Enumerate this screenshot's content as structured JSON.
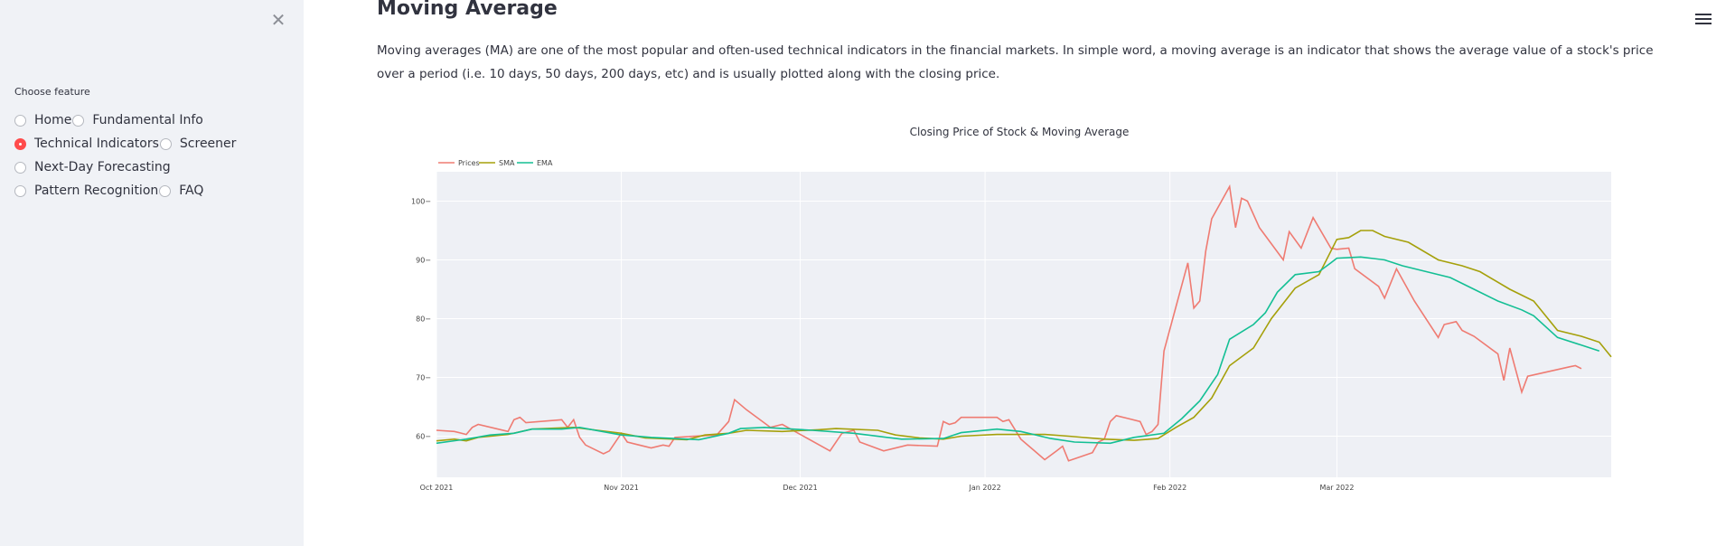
{
  "sidebar": {
    "close_icon": "close-icon",
    "label": "Choose feature",
    "options": [
      {
        "label": "Home",
        "selected": false
      },
      {
        "label": "Fundamental Info",
        "selected": false
      },
      {
        "label": "Technical Indicators",
        "selected": true
      },
      {
        "label": "Screener",
        "selected": false
      },
      {
        "label": "Next-Day Forecasting",
        "selected": false
      },
      {
        "label": "Pattern Recognition",
        "selected": false
      },
      {
        "label": "FAQ",
        "selected": false
      }
    ]
  },
  "main": {
    "title": "Moving Average",
    "description": "Moving averages (MA) are one of the most popular and often-used technical indicators in the financial markets. In simple word, a moving average is an indicator that shows the average value of a stock's price over a period (i.e. 10 days, 50 days, 200 days, etc) and is usually plotted along with the closing price.",
    "menu_icon": "hamburger-menu-icon"
  },
  "colors": {
    "accent": "#ff4b4b",
    "sidebar_bg": "#f0f2f6",
    "plot_bg": "#e5ecf6"
  },
  "chart_data": {
    "type": "line",
    "title": "Closing Price of Stock & Moving Average",
    "xlabel": "",
    "ylabel": "",
    "x_ticks": [
      "Oct 2021",
      "Nov 2021",
      "Dec 2021",
      "Jan 2022",
      "Feb 2022",
      "Mar 2022"
    ],
    "y_ticks": [
      60,
      70,
      80,
      90,
      100
    ],
    "ylim": [
      53,
      105
    ],
    "grid": true,
    "legend": "top-left",
    "series": [
      {
        "name": "Prices",
        "color": "#ef7b72",
        "points": [
          [
            "2021-10-01",
            61
          ],
          [
            "2021-10-04",
            60.8
          ],
          [
            "2021-10-06",
            60.3
          ],
          [
            "2021-10-07",
            61.5
          ],
          [
            "2021-10-08",
            62
          ],
          [
            "2021-10-13",
            60.8
          ],
          [
            "2021-10-14",
            62.8
          ],
          [
            "2021-10-15",
            63.2
          ],
          [
            "2021-10-16",
            62.3
          ],
          [
            "2021-10-22",
            62.8
          ],
          [
            "2021-10-23",
            61.5
          ],
          [
            "2021-10-24",
            62.8
          ],
          [
            "2021-10-25",
            59.8
          ],
          [
            "2021-10-26",
            58.5
          ],
          [
            "2021-10-29",
            57
          ],
          [
            "2021-10-30",
            57.5
          ],
          [
            "2021-11-01",
            60.5
          ],
          [
            "2021-11-02",
            59
          ],
          [
            "2021-11-04",
            58.5
          ],
          [
            "2021-11-06",
            58
          ],
          [
            "2021-11-08",
            58.5
          ],
          [
            "2021-11-09",
            58.3
          ],
          [
            "2021-11-10",
            59.8
          ],
          [
            "2021-11-17",
            60.2
          ],
          [
            "2021-11-19",
            62.5
          ],
          [
            "2021-11-20",
            66.2
          ],
          [
            "2021-11-22",
            64.5
          ],
          [
            "2021-11-24",
            63
          ],
          [
            "2021-11-26",
            61.5
          ],
          [
            "2021-11-28",
            62
          ],
          [
            "2021-12-06",
            57.5
          ],
          [
            "2021-12-08",
            60.5
          ],
          [
            "2021-12-10",
            61
          ],
          [
            "2021-12-11",
            59
          ],
          [
            "2021-12-15",
            57.5
          ],
          [
            "2021-12-19",
            58.5
          ],
          [
            "2021-12-24",
            58.3
          ],
          [
            "2021-12-25",
            62.5
          ],
          [
            "2021-12-26",
            62
          ],
          [
            "2021-12-27",
            62.3
          ],
          [
            "2021-12-28",
            63.2
          ],
          [
            "2022-01-03",
            63.2
          ],
          [
            "2022-01-04",
            62.5
          ],
          [
            "2022-01-05",
            62.8
          ],
          [
            "2022-01-07",
            59.5
          ],
          [
            "2022-01-11",
            56
          ],
          [
            "2022-01-13",
            57.5
          ],
          [
            "2022-01-14",
            58.3
          ],
          [
            "2022-01-15",
            55.8
          ],
          [
            "2022-01-19",
            57.2
          ],
          [
            "2022-01-20",
            59
          ],
          [
            "2022-01-21",
            59.5
          ],
          [
            "2022-01-22",
            62.5
          ],
          [
            "2022-01-23",
            63.5
          ],
          [
            "2022-01-25",
            63
          ],
          [
            "2022-01-27",
            62.5
          ],
          [
            "2022-01-28",
            60.3
          ],
          [
            "2022-01-29",
            60.8
          ],
          [
            "2022-01-30",
            62
          ],
          [
            "2022-01-31",
            74.5
          ],
          [
            "2022-02-02",
            82
          ],
          [
            "2022-02-04",
            89.5
          ],
          [
            "2022-02-05",
            81.8
          ],
          [
            "2022-02-06",
            83
          ],
          [
            "2022-02-07",
            91.5
          ],
          [
            "2022-02-08",
            97
          ],
          [
            "2022-02-11",
            102.5
          ],
          [
            "2022-02-12",
            95.5
          ],
          [
            "2022-02-13",
            100.5
          ],
          [
            "2022-02-14",
            100
          ],
          [
            "2022-02-16",
            95.5
          ],
          [
            "2022-02-20",
            90
          ],
          [
            "2022-02-21",
            94.8
          ],
          [
            "2022-02-23",
            92
          ],
          [
            "2022-02-25",
            97.2
          ],
          [
            "2022-02-28",
            92
          ],
          [
            "2022-03-01",
            91.8
          ],
          [
            "2022-03-03",
            92
          ],
          [
            "2022-03-04",
            88.5
          ],
          [
            "2022-03-08",
            85.5
          ],
          [
            "2022-03-09",
            83.5
          ],
          [
            "2022-03-11",
            88.5
          ],
          [
            "2022-03-14",
            83
          ],
          [
            "2022-03-18",
            76.8
          ],
          [
            "2022-03-19",
            79
          ],
          [
            "2022-03-21",
            79.5
          ],
          [
            "2022-03-22",
            78
          ],
          [
            "2022-03-24",
            77
          ],
          [
            "2022-03-28",
            74
          ],
          [
            "2022-03-29",
            69.5
          ],
          [
            "2022-03-30",
            75
          ],
          [
            "2022-04-01",
            67.5
          ],
          [
            "2022-04-02",
            70.2
          ],
          [
            "2022-04-09",
            71.8
          ],
          [
            "2022-04-10",
            72
          ],
          [
            "2022-04-11",
            71.5
          ]
        ]
      },
      {
        "name": "SMA",
        "color": "#a5a00a",
        "points": [
          [
            "2021-10-01",
            59.2
          ],
          [
            "2021-10-04",
            59.5
          ],
          [
            "2021-10-06",
            59.2
          ],
          [
            "2021-10-08",
            59.8
          ],
          [
            "2021-10-13",
            60.3
          ],
          [
            "2021-10-17",
            61.2
          ],
          [
            "2021-10-24",
            61.5
          ],
          [
            "2021-10-28",
            61
          ],
          [
            "2021-11-01",
            60.5
          ],
          [
            "2021-11-05",
            59.7
          ],
          [
            "2021-11-12",
            59.4
          ],
          [
            "2021-11-15",
            60.2
          ],
          [
            "2021-11-19",
            60.5
          ],
          [
            "2021-11-22",
            61
          ],
          [
            "2021-11-28",
            60.8
          ],
          [
            "2021-12-04",
            61.1
          ],
          [
            "2021-12-07",
            61.3
          ],
          [
            "2021-12-14",
            61
          ],
          [
            "2021-12-17",
            60.2
          ],
          [
            "2021-12-21",
            59.7
          ],
          [
            "2021-12-25",
            59.5
          ],
          [
            "2021-12-28",
            60
          ],
          [
            "2022-01-03",
            60.3
          ],
          [
            "2022-01-11",
            60.3
          ],
          [
            "2022-01-15",
            60
          ],
          [
            "2022-01-21",
            59.5
          ],
          [
            "2022-01-26",
            59.3
          ],
          [
            "2022-01-30",
            59.6
          ],
          [
            "2022-02-02",
            61.5
          ],
          [
            "2022-02-05",
            63.2
          ],
          [
            "2022-02-08",
            66.5
          ],
          [
            "2022-02-11",
            72
          ],
          [
            "2022-02-15",
            75
          ],
          [
            "2022-02-18",
            80
          ],
          [
            "2022-02-22",
            85.2
          ],
          [
            "2022-02-26",
            87.5
          ],
          [
            "2022-03-01",
            93.5
          ],
          [
            "2022-03-03",
            93.8
          ],
          [
            "2022-03-05",
            95
          ],
          [
            "2022-03-07",
            95
          ],
          [
            "2022-03-09",
            94
          ],
          [
            "2022-03-13",
            93
          ],
          [
            "2022-03-18",
            90
          ],
          [
            "2022-03-22",
            89
          ],
          [
            "2022-03-25",
            88
          ],
          [
            "2022-03-30",
            85
          ],
          [
            "2022-04-01",
            84
          ],
          [
            "2022-04-03",
            83
          ],
          [
            "2022-04-07",
            78
          ],
          [
            "2022-04-11",
            77
          ],
          [
            "2022-04-14",
            76
          ],
          [
            "2022-04-16",
            73.5
          ]
        ]
      },
      {
        "name": "EMA",
        "color": "#13bf94",
        "points": [
          [
            "2021-10-01",
            58.8
          ],
          [
            "2021-10-06",
            59.5
          ],
          [
            "2021-10-10",
            60.2
          ],
          [
            "2021-10-14",
            60.5
          ],
          [
            "2021-10-17",
            61.2
          ],
          [
            "2021-10-22",
            61.2
          ],
          [
            "2021-10-25",
            61.5
          ],
          [
            "2021-11-01",
            60.2
          ],
          [
            "2021-11-06",
            59.8
          ],
          [
            "2021-11-14",
            59.4
          ],
          [
            "2021-11-19",
            60.5
          ],
          [
            "2021-11-21",
            61.3
          ],
          [
            "2021-11-25",
            61.5
          ],
          [
            "2021-12-03",
            61
          ],
          [
            "2021-12-10",
            60.5
          ],
          [
            "2021-12-18",
            59.5
          ],
          [
            "2021-12-25",
            59.6
          ],
          [
            "2021-12-28",
            60.6
          ],
          [
            "2022-01-03",
            61.2
          ],
          [
            "2022-01-07",
            60.8
          ],
          [
            "2022-01-12",
            59.6
          ],
          [
            "2022-01-16",
            59
          ],
          [
            "2022-01-22",
            58.8
          ],
          [
            "2022-01-26",
            59.8
          ],
          [
            "2022-01-31",
            60.5
          ],
          [
            "2022-02-03",
            63
          ],
          [
            "2022-02-06",
            66
          ],
          [
            "2022-02-09",
            70.5
          ],
          [
            "2022-02-11",
            76.5
          ],
          [
            "2022-02-15",
            79
          ],
          [
            "2022-02-17",
            81
          ],
          [
            "2022-02-19",
            84.5
          ],
          [
            "2022-02-22",
            87.5
          ],
          [
            "2022-02-26",
            88
          ],
          [
            "2022-02-28",
            89.5
          ],
          [
            "2022-03-01",
            90.3
          ],
          [
            "2022-03-05",
            90.5
          ],
          [
            "2022-03-09",
            90
          ],
          [
            "2022-03-12",
            89
          ],
          [
            "2022-03-16",
            88
          ],
          [
            "2022-03-20",
            87
          ],
          [
            "2022-03-24",
            85
          ],
          [
            "2022-03-28",
            83
          ],
          [
            "2022-04-01",
            81.5
          ],
          [
            "2022-04-03",
            80.5
          ],
          [
            "2022-04-07",
            76.8
          ],
          [
            "2022-04-11",
            75.5
          ],
          [
            "2022-04-14",
            74.5
          ]
        ]
      }
    ]
  }
}
